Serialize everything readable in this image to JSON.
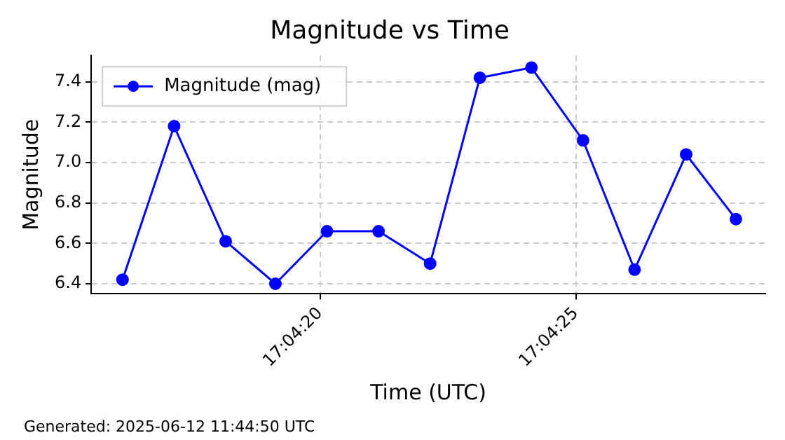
{
  "chart_data": {
    "type": "line",
    "title": "Magnitude vs Time",
    "xlabel": "Time (UTC)",
    "ylabel": "Magnitude",
    "x": [
      17.07115,
      17.07143,
      17.07171,
      17.07198,
      17.07226,
      17.07254,
      17.07282,
      17.07309,
      17.07337,
      17.07365,
      17.07393,
      17.07421,
      17.07448
    ],
    "series": [
      {
        "name": "Magnitude (mag)",
        "color": "#0000ff",
        "values": [
          6.42,
          7.18,
          6.61,
          6.4,
          6.66,
          6.66,
          6.5,
          7.42,
          7.47,
          7.11,
          6.47,
          7.04,
          6.72
        ]
      }
    ],
    "xlim": [
      17.07098,
      17.07464
    ],
    "xticks": [
      {
        "value": 17.072222,
        "label": "17:04:20"
      },
      {
        "value": 17.073611,
        "label": "17:04:25"
      }
    ],
    "ylim": [
      6.35,
      7.53
    ],
    "yticks": [
      {
        "value": 6.4,
        "label": "6.4"
      },
      {
        "value": 6.6,
        "label": "6.6"
      },
      {
        "value": 6.8,
        "label": "6.8"
      },
      {
        "value": 7.0,
        "label": "7.0"
      },
      {
        "value": 7.2,
        "label": "7.2"
      },
      {
        "value": 7.4,
        "label": "7.4"
      }
    ],
    "grid": true,
    "line_style": "solid",
    "legend": "top left",
    "marker": "circle",
    "annotations": [
      "Generated: 2025-06-12 11:44:50 UTC"
    ]
  }
}
